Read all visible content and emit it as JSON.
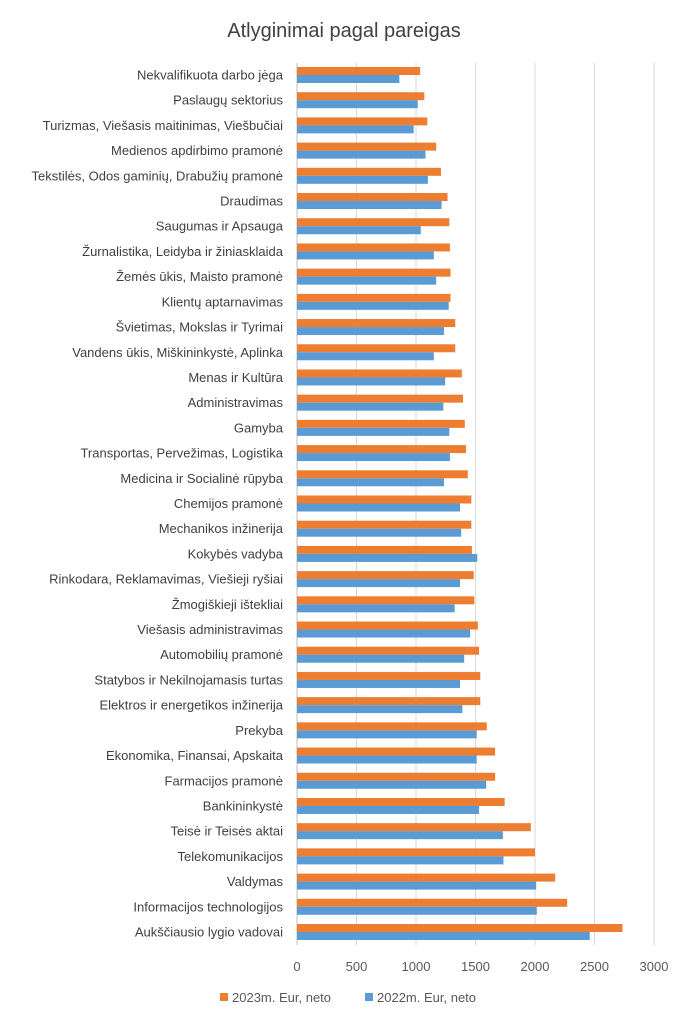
{
  "chart_data": {
    "type": "bar",
    "orientation": "horizontal",
    "title": "Atlyginimai pagal pareigas",
    "xlabel": "",
    "ylabel": "",
    "xlim": [
      0,
      3000
    ],
    "xticks": [
      "0",
      "500",
      "1000",
      "1500",
      "2000",
      "2500",
      "3000"
    ],
    "grid": true,
    "legend_position": "bottom",
    "categories": [
      "Nekvalifikuota darbo jėga",
      "Paslaugų sektorius",
      "Turizmas, Viešasis maitinimas, Viešbučiai",
      "Medienos apdirbimo pramonė",
      "Tekstilės, Odos gaminių, Drabužių pramonė",
      "Draudimas",
      "Saugumas ir Apsauga",
      "Žurnalistika, Leidyba ir žiniasklaida",
      "Žemės ūkis, Maisto pramonė",
      "Klientų aptarnavimas",
      "Švietimas, Mokslas ir Tyrimai",
      "Vandens ūkis, Miškininkystė, Aplinka",
      "Menas ir Kultūra",
      "Administravimas",
      "Gamyba",
      "Transportas, Pervežimas, Logistika",
      "Medicina ir Socialinė rūpyba",
      "Chemijos pramonė",
      "Mechanikos inžinerija",
      "Kokybės vadyba",
      "Rinkodara, Reklamavimas, Viešieji ryšiai",
      "Žmogiškieji ištekliai",
      "Viešasis administravimas",
      "Automobilių pramonė",
      "Statybos ir Nekilnojamasis turtas",
      "Elektros ir energetikos inžinerija",
      "Prekyba",
      "Ekonomika, Finansai, Apskaita",
      "Farmacijos pramonė",
      "Bankininkystė",
      "Teisė ir Teisės aktai",
      "Telekomunikacijos",
      "Valdymas",
      "Informacijos technologijos",
      "Aukščiausio lygio vadovai"
    ],
    "series": [
      {
        "name": "2023m. Eur, neto",
        "color": "#ED7D31",
        "values": [
          1035,
          1070,
          1095,
          1170,
          1210,
          1265,
          1280,
          1285,
          1290,
          1290,
          1330,
          1330,
          1385,
          1395,
          1410,
          1420,
          1435,
          1465,
          1465,
          1470,
          1485,
          1490,
          1520,
          1530,
          1540,
          1540,
          1595,
          1665,
          1665,
          1745,
          1965,
          2000,
          2170,
          2270,
          2735
        ]
      },
      {
        "name": "2022m. Eur, neto",
        "color": "#5B9BD5",
        "values": [
          860,
          1015,
          980,
          1080,
          1100,
          1215,
          1040,
          1150,
          1170,
          1275,
          1235,
          1150,
          1245,
          1230,
          1280,
          1285,
          1235,
          1370,
          1380,
          1515,
          1370,
          1325,
          1455,
          1405,
          1370,
          1390,
          1510,
          1510,
          1590,
          1530,
          1730,
          1735,
          2010,
          2015,
          2460
        ]
      }
    ]
  }
}
